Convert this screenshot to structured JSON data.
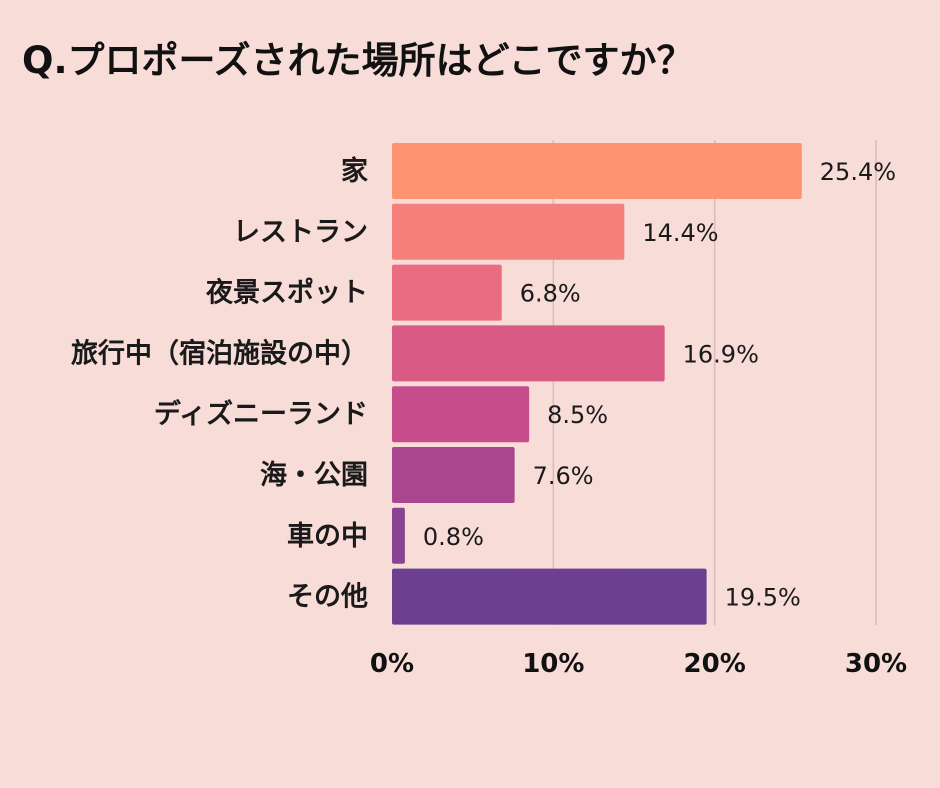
{
  "title": "Q.プロポーズされた場所はどこですか？",
  "chart_data": {
    "type": "bar",
    "orientation": "horizontal",
    "title": "Q.プロポーズされた場所はどこですか？",
    "categories": [
      "家",
      "レストラン",
      "夜景スポット",
      "旅行中（宿泊施設の中）",
      "ディズニーランド",
      "海・公園",
      "車の中",
      "その他"
    ],
    "values": [
      25.4,
      14.4,
      6.8,
      16.9,
      8.5,
      7.6,
      0.8,
      19.5
    ],
    "value_labels": [
      "25.4%",
      "14.4%",
      "6.8%",
      "16.9%",
      "8.5%",
      "7.6%",
      "0.8%",
      "19.5%"
    ],
    "bar_colors": [
      "#fd9371",
      "#f47f7b",
      "#eb6b80",
      "#d95a85",
      "#c64c8b",
      "#a8468f",
      "#884392",
      "#6c3f90"
    ],
    "xticks": [
      0,
      10,
      20,
      30
    ],
    "xtick_labels": [
      "0%",
      "10%",
      "20%",
      "30%"
    ],
    "xlim": [
      0,
      30
    ],
    "grid": true,
    "xlabel": "",
    "ylabel": ""
  }
}
